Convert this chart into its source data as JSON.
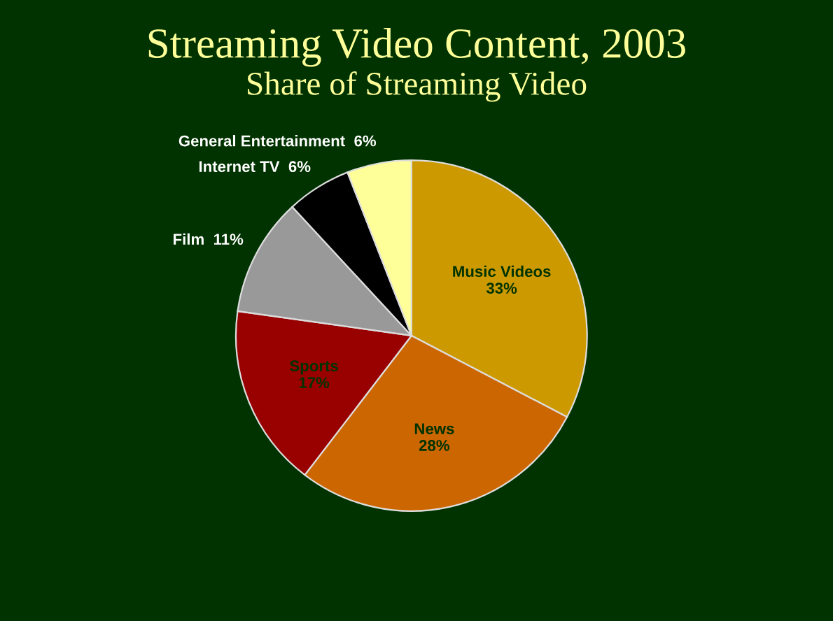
{
  "chart_data": {
    "type": "pie",
    "title": "Streaming Video Content, 2003",
    "subtitle": "Share of Streaming Video",
    "categories": [
      "Music Videos",
      "News",
      "Sports",
      "Film",
      "Internet TV",
      "General Entertainment"
    ],
    "values": [
      33,
      28,
      17,
      11,
      6,
      6
    ],
    "value_labels": [
      "33%",
      "28%",
      "17%",
      "11%",
      "6%",
      "6%"
    ],
    "colors": [
      "#cc9900",
      "#cc6600",
      "#990000",
      "#999999",
      "#000000",
      "#ffff99"
    ],
    "legend": false
  }
}
